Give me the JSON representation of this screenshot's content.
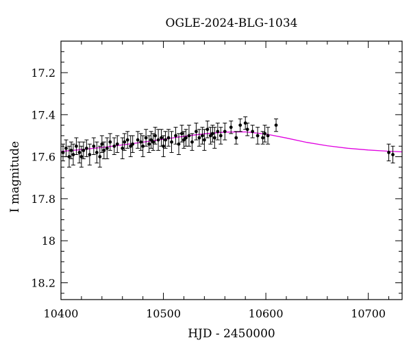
{
  "chart_data": {
    "type": "scatter",
    "title": "OGLE-2024-BLG-1034",
    "xlabel": "HJD - 2450000",
    "ylabel": "I magnitude",
    "xlim": [
      10400,
      10733
    ],
    "ylim": [
      18.28,
      17.05
    ],
    "y_inverted": true,
    "x_ticks": [
      10400,
      10500,
      10600,
      10700
    ],
    "x_tick_labels": [
      "10400",
      "10500",
      "10600",
      "10700"
    ],
    "y_ticks": [
      17.2,
      17.4,
      17.6,
      17.8,
      18.0,
      18.2
    ],
    "y_tick_labels": [
      "17.2",
      "17.4",
      "17.6",
      "17.8",
      "18",
      "18.2"
    ],
    "grid": false,
    "legend": "none",
    "series": [
      {
        "kind": "points_with_errorbars",
        "color": "#000000",
        "x": [
          10402,
          10405,
          10408,
          10410,
          10412,
          10415,
          10418,
          10420,
          10422,
          10425,
          10428,
          10432,
          10435,
          10438,
          10440,
          10442,
          10445,
          10448,
          10452,
          10455,
          10460,
          10462,
          10465,
          10468,
          10470,
          10475,
          10478,
          10480,
          10483,
          10486,
          10488,
          10490,
          10492,
          10495,
          10498,
          10500,
          10502,
          10505,
          10508,
          10512,
          10515,
          10518,
          10520,
          10522,
          10525,
          10528,
          10532,
          10535,
          10538,
          10540,
          10543,
          10546,
          10548,
          10550,
          10553,
          10556,
          10560,
          10566,
          10571,
          10575,
          10580,
          10582,
          10587,
          10592,
          10597,
          10599,
          10602,
          10610,
          10720,
          10724
        ],
        "y": [
          17.58,
          17.56,
          17.6,
          17.57,
          17.59,
          17.55,
          17.58,
          17.6,
          17.57,
          17.56,
          17.59,
          17.55,
          17.58,
          17.6,
          17.54,
          17.57,
          17.56,
          17.53,
          17.55,
          17.54,
          17.56,
          17.53,
          17.52,
          17.55,
          17.54,
          17.52,
          17.53,
          17.55,
          17.51,
          17.54,
          17.52,
          17.53,
          17.5,
          17.52,
          17.51,
          17.55,
          17.52,
          17.51,
          17.53,
          17.5,
          17.54,
          17.49,
          17.52,
          17.51,
          17.5,
          17.53,
          17.48,
          17.51,
          17.5,
          17.52,
          17.47,
          17.5,
          17.49,
          17.51,
          17.48,
          17.5,
          17.48,
          17.46,
          17.51,
          17.45,
          17.44,
          17.47,
          17.48,
          17.5,
          17.51,
          17.49,
          17.5,
          17.45,
          17.58,
          17.59
        ],
        "err": [
          0.04,
          0.04,
          0.05,
          0.04,
          0.05,
          0.04,
          0.05,
          0.05,
          0.04,
          0.04,
          0.05,
          0.04,
          0.05,
          0.05,
          0.04,
          0.04,
          0.05,
          0.04,
          0.04,
          0.04,
          0.05,
          0.04,
          0.04,
          0.05,
          0.04,
          0.04,
          0.04,
          0.05,
          0.04,
          0.04,
          0.04,
          0.04,
          0.04,
          0.05,
          0.04,
          0.05,
          0.04,
          0.04,
          0.05,
          0.04,
          0.05,
          0.04,
          0.04,
          0.04,
          0.05,
          0.04,
          0.04,
          0.04,
          0.04,
          0.05,
          0.04,
          0.04,
          0.04,
          0.05,
          0.04,
          0.04,
          0.04,
          0.03,
          0.03,
          0.03,
          0.03,
          0.03,
          0.03,
          0.04,
          0.03,
          0.04,
          0.04,
          0.03,
          0.04,
          0.04
        ]
      },
      {
        "kind": "model_curve",
        "color": "#e000e0",
        "x": [
          10400,
          10420,
          10440,
          10460,
          10480,
          10500,
          10520,
          10540,
          10560,
          10580,
          10600,
          10620,
          10640,
          10660,
          10680,
          10700,
          10720,
          10733
        ],
        "y": [
          17.575,
          17.566,
          17.556,
          17.544,
          17.531,
          17.517,
          17.503,
          17.491,
          17.483,
          17.482,
          17.492,
          17.511,
          17.532,
          17.548,
          17.56,
          17.568,
          17.574,
          17.577
        ]
      }
    ]
  }
}
